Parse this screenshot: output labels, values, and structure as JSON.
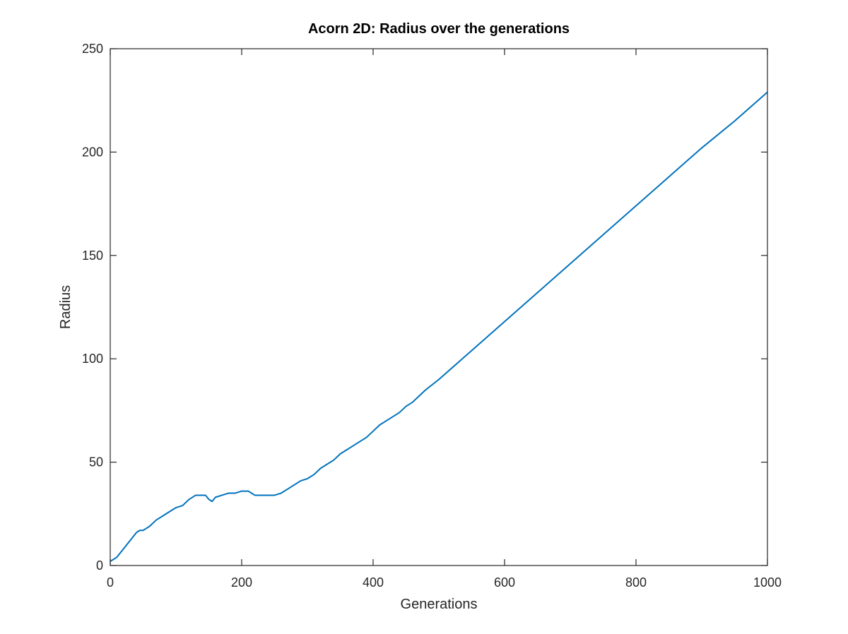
{
  "chart_data": {
    "type": "line",
    "title": "Acorn 2D: Radius over the generations",
    "xlabel": "Generations",
    "ylabel": "Radius",
    "xlim": [
      0,
      1000
    ],
    "ylim": [
      0,
      250
    ],
    "xticks": [
      "0",
      "200",
      "400",
      "600",
      "800",
      "1000"
    ],
    "yticks": [
      "0",
      "50",
      "100",
      "150",
      "200",
      "250"
    ],
    "grid": false,
    "series": [
      {
        "color": "#0072BD",
        "x": [
          0,
          5,
          10,
          20,
          30,
          40,
          45,
          50,
          55,
          60,
          70,
          80,
          90,
          100,
          110,
          120,
          130,
          140,
          145,
          150,
          155,
          160,
          170,
          180,
          190,
          200,
          210,
          215,
          220,
          230,
          240,
          250,
          260,
          270,
          280,
          290,
          300,
          310,
          320,
          330,
          340,
          350,
          360,
          370,
          380,
          390,
          400,
          410,
          420,
          430,
          440,
          450,
          460,
          470,
          480,
          500,
          550,
          600,
          650,
          700,
          750,
          800,
          850,
          900,
          950,
          1000
        ],
        "y": [
          2,
          3,
          4,
          8,
          12,
          16,
          17,
          17,
          18,
          19,
          22,
          24,
          26,
          28,
          29,
          32,
          34,
          34,
          34,
          32,
          31,
          33,
          34,
          35,
          35,
          36,
          36,
          35,
          34,
          34,
          34,
          34,
          35,
          37,
          39,
          41,
          42,
          44,
          47,
          49,
          51,
          54,
          56,
          58,
          60,
          62,
          65,
          68,
          70,
          72,
          74,
          77,
          79,
          82,
          85,
          90,
          104,
          118,
          132,
          146,
          160,
          174,
          188,
          202,
          215,
          229
        ]
      }
    ]
  }
}
